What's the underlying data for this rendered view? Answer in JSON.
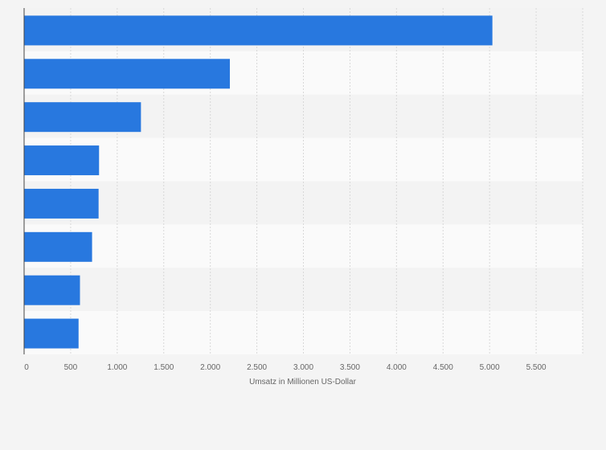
{
  "chart_data": {
    "type": "bar",
    "orientation": "horizontal",
    "categories": [
      "",
      "",
      "",
      "",
      "",
      "",
      "",
      ""
    ],
    "values": [
      5030,
      2210,
      1255,
      805,
      800,
      730,
      600,
      585
    ],
    "xlabel": "Umsatz in Millionen US-Dollar",
    "ylabel": "",
    "xlim": [
      0,
      6000
    ],
    "xticks": [
      0,
      500,
      1000,
      1500,
      2000,
      2500,
      3000,
      3500,
      4000,
      4500,
      5000,
      5500
    ],
    "xtick_labels": [
      "0",
      "500",
      "1.000",
      "1.500",
      "2.000",
      "2.500",
      "3.000",
      "3.500",
      "4.000",
      "4.500",
      "5.000",
      "5.500"
    ],
    "grid": true,
    "bar_color": "#2878df",
    "band_colors": [
      "#f3f3f3",
      "#fafafa"
    ],
    "gridline_color": "#d8d8d8"
  }
}
